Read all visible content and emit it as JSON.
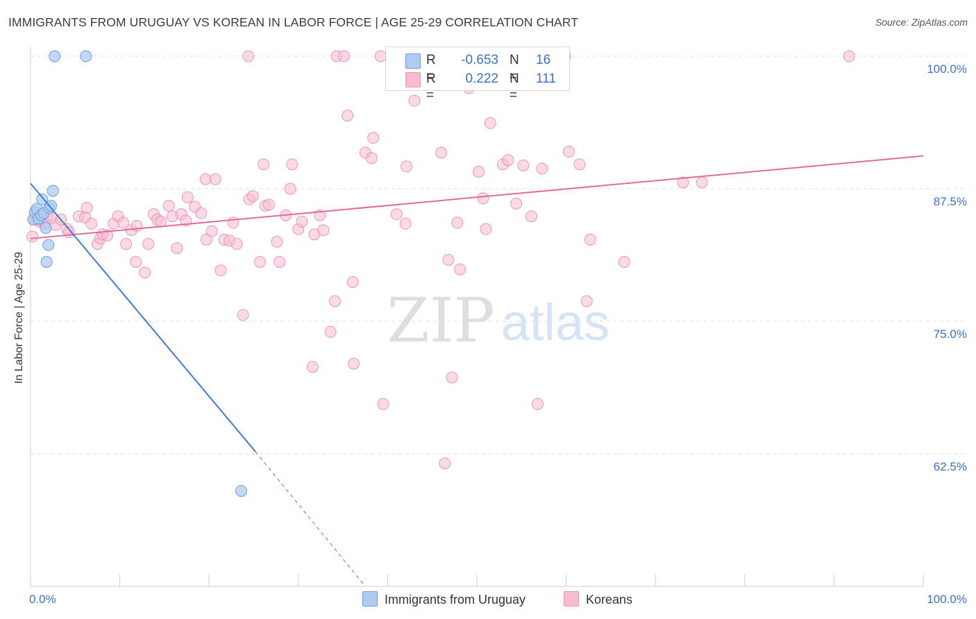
{
  "title": "IMMIGRANTS FROM URUGUAY VS KOREAN IN LABOR FORCE | AGE 25-29 CORRELATION CHART",
  "source": "Source: ZipAtlas.com",
  "watermark": {
    "zip": "ZIP",
    "atlas": "atlas"
  },
  "colors": {
    "uruguay_fill": "#aecbf2",
    "uruguay_stroke": "#6d9ee0",
    "uruguay_line": "#3c7bd6",
    "korean_fill": "#f7bcd0",
    "korean_stroke": "#ec95b4",
    "korean_line": "#e06b97",
    "axis_text": "#3a72c8"
  },
  "legend": {
    "rows": [
      {
        "r_label": "R =",
        "r_value": "-0.653",
        "n_label": "N =",
        "n_value": "16"
      },
      {
        "r_label": "R =",
        "r_value": "0.222",
        "n_label": "N =",
        "n_value": "111"
      }
    ]
  },
  "bottom_legend": {
    "uruguay": "Immigrants from Uruguay",
    "korean": "Koreans"
  },
  "chart_data": {
    "type": "scatter",
    "title": "IMMIGRANTS FROM URUGUAY VS KOREAN IN LABOR FORCE | AGE 25-29 CORRELATION CHART",
    "xlabel": "",
    "ylabel": "In Labor Force | Age 25-29",
    "xlim": [
      0,
      100
    ],
    "ylim": [
      50,
      101
    ],
    "x_tick_labels": [
      "0.0%",
      "100.0%"
    ],
    "y_ticks": [
      62.5,
      75.0,
      87.5,
      100.0
    ],
    "y_tick_labels": [
      "62.5%",
      "75.0%",
      "87.5%",
      "100.0%"
    ],
    "grid": "horizontal dashed",
    "series": [
      {
        "name": "Immigrants from Uruguay",
        "points": [
          [
            0.3,
            84.6
          ],
          [
            0.5,
            85.3
          ],
          [
            0.7,
            85.6
          ],
          [
            0.9,
            84.7
          ],
          [
            1.2,
            85.0
          ],
          [
            1.3,
            86.5
          ],
          [
            1.5,
            85.2
          ],
          [
            1.7,
            83.8
          ],
          [
            2.1,
            85.7
          ],
          [
            2.3,
            85.9
          ],
          [
            2.0,
            82.2
          ],
          [
            1.8,
            80.6
          ],
          [
            2.5,
            87.3
          ],
          [
            2.7,
            100.0
          ],
          [
            6.2,
            100.0
          ],
          [
            23.6,
            59.0
          ]
        ],
        "trend": {
          "x": [
            0,
            25.2
          ],
          "y": [
            88.0,
            62.7
          ],
          "dashed_to": [
            37.5,
            50.0
          ]
        }
      },
      {
        "name": "Koreans",
        "points": [
          [
            0.2,
            83.0
          ],
          [
            0.5,
            84.6
          ],
          [
            0.8,
            85.2
          ],
          [
            1.0,
            84.4
          ],
          [
            1.3,
            84.9
          ],
          [
            1.6,
            84.2
          ],
          [
            1.9,
            85.0
          ],
          [
            2.4,
            84.7
          ],
          [
            2.8,
            84.1
          ],
          [
            3.4,
            84.6
          ],
          [
            4.1,
            83.7
          ],
          [
            4.3,
            83.4
          ],
          [
            5.4,
            84.9
          ],
          [
            6.1,
            84.8
          ],
          [
            6.3,
            85.7
          ],
          [
            6.8,
            84.2
          ],
          [
            7.5,
            82.3
          ],
          [
            7.8,
            82.8
          ],
          [
            8.1,
            83.2
          ],
          [
            8.6,
            83.1
          ],
          [
            9.3,
            84.2
          ],
          [
            9.8,
            84.9
          ],
          [
            10.4,
            84.3
          ],
          [
            10.7,
            82.3
          ],
          [
            11.3,
            83.6
          ],
          [
            11.9,
            84.0
          ],
          [
            11.8,
            80.6
          ],
          [
            12.8,
            79.6
          ],
          [
            13.2,
            82.3
          ],
          [
            13.8,
            85.1
          ],
          [
            14.2,
            84.6
          ],
          [
            14.6,
            84.4
          ],
          [
            15.5,
            85.9
          ],
          [
            15.9,
            84.9
          ],
          [
            16.4,
            81.9
          ],
          [
            16.9,
            85.1
          ],
          [
            17.4,
            84.5
          ],
          [
            17.6,
            86.7
          ],
          [
            18.4,
            85.8
          ],
          [
            19.1,
            85.2
          ],
          [
            19.6,
            88.4
          ],
          [
            19.7,
            82.7
          ],
          [
            20.3,
            83.5
          ],
          [
            20.7,
            88.4
          ],
          [
            21.3,
            79.8
          ],
          [
            21.7,
            82.7
          ],
          [
            22.7,
            84.3
          ],
          [
            22.3,
            82.6
          ],
          [
            23.1,
            82.3
          ],
          [
            23.8,
            75.6
          ],
          [
            24.4,
            100.0
          ],
          [
            24.5,
            86.5
          ],
          [
            24.9,
            86.8
          ],
          [
            25.7,
            80.6
          ],
          [
            26.1,
            89.8
          ],
          [
            26.3,
            85.9
          ],
          [
            26.7,
            86.0
          ],
          [
            27.6,
            82.5
          ],
          [
            27.9,
            80.6
          ],
          [
            28.6,
            85.0
          ],
          [
            29.1,
            87.5
          ],
          [
            29.3,
            89.8
          ],
          [
            30.0,
            83.7
          ],
          [
            30.4,
            84.4
          ],
          [
            31.6,
            70.7
          ],
          [
            31.8,
            83.2
          ],
          [
            32.4,
            85.0
          ],
          [
            32.8,
            83.6
          ],
          [
            33.6,
            74.0
          ],
          [
            34.1,
            76.9
          ],
          [
            34.3,
            100.0
          ],
          [
            35.1,
            100.0
          ],
          [
            35.5,
            94.4
          ],
          [
            36.1,
            78.7
          ],
          [
            36.2,
            71.0
          ],
          [
            37.5,
            90.9
          ],
          [
            38.2,
            90.4
          ],
          [
            38.4,
            92.3
          ],
          [
            39.5,
            67.2
          ],
          [
            39.2,
            100.0
          ],
          [
            41.0,
            85.1
          ],
          [
            42.0,
            84.2
          ],
          [
            42.1,
            89.6
          ],
          [
            43.0,
            95.8
          ],
          [
            46.0,
            90.9
          ],
          [
            46.4,
            61.6
          ],
          [
            46.8,
            80.8
          ],
          [
            47.2,
            69.7
          ],
          [
            47.8,
            84.3
          ],
          [
            48.1,
            79.9
          ],
          [
            49.1,
            97.0
          ],
          [
            49.3,
            98.4
          ],
          [
            50.2,
            89.1
          ],
          [
            50.7,
            86.6
          ],
          [
            51.0,
            83.7
          ],
          [
            51.5,
            93.7
          ],
          [
            52.9,
            89.8
          ],
          [
            53.5,
            90.2
          ],
          [
            54.4,
            86.1
          ],
          [
            55.2,
            89.7
          ],
          [
            56.1,
            84.9
          ],
          [
            56.8,
            67.2
          ],
          [
            57.3,
            89.4
          ],
          [
            59.9,
            100.0
          ],
          [
            60.3,
            91.0
          ],
          [
            61.5,
            89.8
          ],
          [
            62.3,
            76.9
          ],
          [
            62.7,
            82.7
          ],
          [
            66.5,
            80.6
          ],
          [
            73.1,
            88.1
          ],
          [
            75.2,
            88.1
          ],
          [
            91.7,
            100.0
          ],
          [
            0.8,
            84.6
          ]
        ],
        "trend": {
          "x": [
            0,
            100
          ],
          "y": [
            82.8,
            90.6
          ]
        }
      }
    ]
  }
}
